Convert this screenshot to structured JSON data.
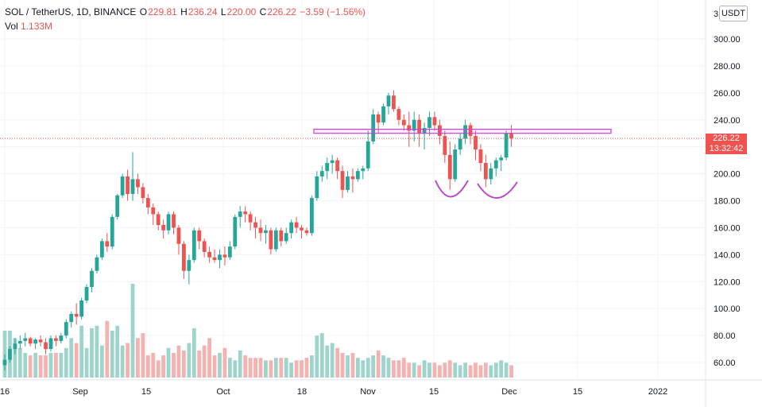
{
  "header": {
    "symbol": "SOL / TetherUS, 1D, BINANCE",
    "o_label": "O",
    "o_value": "229.81",
    "h_label": "H",
    "h_value": "236.24",
    "l_label": "L",
    "l_value": "220.00",
    "c_label": "C",
    "c_value": "226.22",
    "change": "−3.59 (−1.56%)",
    "vol_label": "Vol",
    "vol_value": "1.133M"
  },
  "currency_button": "USDT",
  "price_tag": {
    "price": "226.22",
    "countdown": "13:32:42"
  },
  "colors": {
    "up": "#26a69a",
    "down": "#ef5350",
    "zone": "#ce3fd0",
    "up_vol": "#9fd4cd",
    "down_vol": "#f4b2b0"
  },
  "chart_data": {
    "type": "candlestick",
    "symbol": "SOL / TetherUS",
    "interval": "1D",
    "exchange": "BINANCE",
    "y_ticks": [
      "300.00",
      "280.00",
      "260.00",
      "240.00",
      "220.00",
      "200.00",
      "180.00",
      "160.00",
      "140.00",
      "120.00",
      "100.00",
      "80.00",
      "60.00"
    ],
    "x_ticks": [
      "16",
      "Sep",
      "15",
      "Oct",
      "18",
      "Nov",
      "15",
      "Dec",
      "15",
      "2022"
    ],
    "ylim": [
      50,
      314
    ],
    "grid": true,
    "last_price": 226.22,
    "resistance_zone": [
      230,
      233
    ],
    "annotations": [
      "double-bottom-arc-left",
      "double-bottom-arc-right"
    ],
    "candles_ohlc": [
      [
        58,
        66,
        54,
        62
      ],
      [
        62,
        72,
        60,
        70
      ],
      [
        70,
        78,
        66,
        74
      ],
      [
        74,
        80,
        70,
        76
      ],
      [
        76,
        82,
        72,
        78
      ],
      [
        78,
        79,
        72,
        74
      ],
      [
        74,
        78,
        70,
        77
      ],
      [
        77,
        80,
        72,
        75
      ],
      [
        75,
        78,
        66,
        70
      ],
      [
        70,
        80,
        68,
        78
      ],
      [
        78,
        80,
        72,
        76
      ],
      [
        76,
        82,
        74,
        80
      ],
      [
        80,
        92,
        78,
        90
      ],
      [
        90,
        98,
        86,
        96
      ],
      [
        96,
        104,
        88,
        94
      ],
      [
        94,
        108,
        92,
        106
      ],
      [
        106,
        118,
        104,
        116
      ],
      [
        116,
        130,
        112,
        128
      ],
      [
        128,
        140,
        126,
        138
      ],
      [
        138,
        152,
        136,
        150
      ],
      [
        150,
        156,
        142,
        146
      ],
      [
        146,
        170,
        144,
        168
      ],
      [
        168,
        185,
        166,
        184
      ],
      [
        184,
        200,
        182,
        198
      ],
      [
        198,
        203,
        180,
        185
      ],
      [
        185,
        216,
        180,
        196
      ],
      [
        196,
        200,
        185,
        190
      ],
      [
        190,
        193,
        178,
        182
      ],
      [
        182,
        185,
        170,
        175
      ],
      [
        175,
        178,
        162,
        170
      ],
      [
        170,
        172,
        158,
        162
      ],
      [
        162,
        166,
        152,
        158
      ],
      [
        158,
        172,
        155,
        170
      ],
      [
        170,
        172,
        155,
        160
      ],
      [
        160,
        162,
        140,
        148
      ],
      [
        148,
        150,
        122,
        128
      ],
      [
        128,
        140,
        118,
        136
      ],
      [
        136,
        160,
        134,
        158
      ],
      [
        158,
        160,
        144,
        150
      ],
      [
        150,
        152,
        138,
        142
      ],
      [
        142,
        146,
        134,
        138
      ],
      [
        138,
        144,
        134,
        136
      ],
      [
        136,
        144,
        130,
        140
      ],
      [
        140,
        146,
        132,
        138
      ],
      [
        138,
        150,
        136,
        146
      ],
      [
        146,
        170,
        144,
        168
      ],
      [
        168,
        176,
        160,
        172
      ],
      [
        172,
        176,
        164,
        170
      ],
      [
        170,
        172,
        158,
        164
      ],
      [
        164,
        168,
        152,
        160
      ],
      [
        160,
        166,
        150,
        156
      ],
      [
        156,
        162,
        148,
        158
      ],
      [
        158,
        160,
        140,
        144
      ],
      [
        144,
        160,
        142,
        158
      ],
      [
        158,
        160,
        146,
        150
      ],
      [
        150,
        160,
        148,
        156
      ],
      [
        156,
        166,
        152,
        164
      ],
      [
        164,
        168,
        156,
        160
      ],
      [
        160,
        162,
        152,
        158
      ],
      [
        158,
        160,
        154,
        156
      ],
      [
        156,
        184,
        154,
        182
      ],
      [
        182,
        202,
        180,
        198
      ],
      [
        198,
        206,
        194,
        202
      ],
      [
        202,
        212,
        196,
        208
      ],
      [
        208,
        214,
        200,
        210
      ],
      [
        210,
        212,
        196,
        202
      ],
      [
        202,
        206,
        182,
        188
      ],
      [
        188,
        202,
        186,
        198
      ],
      [
        198,
        204,
        186,
        196
      ],
      [
        196,
        204,
        194,
        202
      ],
      [
        202,
        206,
        196,
        204
      ],
      [
        204,
        232,
        202,
        224
      ],
      [
        224,
        248,
        222,
        244
      ],
      [
        244,
        246,
        230,
        238
      ],
      [
        238,
        252,
        236,
        250
      ],
      [
        250,
        260,
        244,
        258
      ],
      [
        258,
        262,
        246,
        248
      ],
      [
        248,
        250,
        236,
        240
      ],
      [
        240,
        244,
        232,
        236
      ],
      [
        236,
        246,
        220,
        232
      ],
      [
        232,
        246,
        224,
        240
      ],
      [
        240,
        244,
        220,
        230
      ],
      [
        230,
        238,
        218,
        234
      ],
      [
        234,
        246,
        228,
        242
      ],
      [
        242,
        246,
        232,
        236
      ],
      [
        236,
        240,
        222,
        228
      ],
      [
        228,
        232,
        208,
        214
      ],
      [
        214,
        224,
        188,
        196
      ],
      [
        196,
        222,
        194,
        218
      ],
      [
        218,
        230,
        214,
        226
      ],
      [
        226,
        240,
        222,
        236
      ],
      [
        236,
        238,
        222,
        228
      ],
      [
        228,
        232,
        210,
        218
      ],
      [
        218,
        222,
        202,
        208
      ],
      [
        208,
        214,
        190,
        196
      ],
      [
        196,
        208,
        192,
        204
      ],
      [
        204,
        212,
        198,
        210
      ],
      [
        210,
        214,
        202,
        212
      ],
      [
        212,
        232,
        210,
        230
      ],
      [
        229.81,
        236.24,
        220,
        226.22
      ]
    ],
    "volume": [
      1.9,
      1.9,
      1.6,
      1.2,
      1.0,
      0.9,
      1.0,
      0.9,
      0.9,
      1.0,
      1.0,
      1.0,
      1.2,
      1.6,
      1.4,
      2.1,
      1.2,
      2.0,
      2.1,
      1.3,
      2.3,
      1.9,
      2.1,
      1.3,
      1.4,
      3.8,
      1.6,
      1.8,
      0.9,
      1.0,
      0.7,
      0.9,
      1.2,
      1.0,
      1.3,
      1.1,
      1.4,
      2.0,
      1.1,
      1.3,
      1.6,
      0.9,
      1.0,
      1.2,
      0.8,
      0.7,
      1.1,
      0.9,
      0.8,
      0.8,
      0.8,
      0.7,
      0.7,
      0.8,
      0.8,
      0.8,
      0.6,
      0.7,
      0.7,
      0.8,
      0.9,
      1.7,
      1.8,
      1.3,
      1.4,
      1.2,
      1.0,
      0.9,
      1.0,
      0.8,
      0.7,
      0.8,
      0.9,
      1.1,
      0.9,
      0.8,
      0.7,
      0.7,
      0.8,
      0.6,
      0.6,
      0.5,
      0.7,
      0.6,
      0.6,
      0.5,
      0.6,
      0.7,
      0.6,
      0.5,
      0.6,
      0.5,
      0.6,
      0.5,
      0.6,
      0.5,
      0.6,
      0.7,
      0.6,
      0.5
    ]
  }
}
